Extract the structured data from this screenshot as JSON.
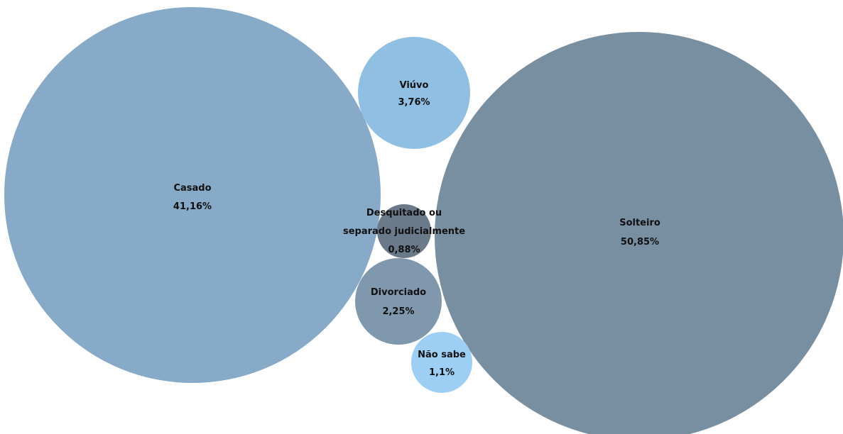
{
  "chart_data": {
    "type": "bubble",
    "series": [
      {
        "name": "Casado",
        "label": "Casado",
        "value_label": "41,16%",
        "value": 41.16,
        "color": "#86aac8"
      },
      {
        "name": "Viúvo",
        "label": "Viúvo",
        "value_label": "3,76%",
        "value": 3.76,
        "color": "#90bfe4"
      },
      {
        "name": "Desquitado ou separado judicialmente",
        "label_lines": [
          "Desquitado ou",
          "separado judicialmente"
        ],
        "value_label": "0,88%",
        "value": 0.88,
        "color": "#6b7a8b"
      },
      {
        "name": "Divorciado",
        "label": "Divorciado",
        "value_label": "2,25%",
        "value": 2.25,
        "color": "#7f98ae"
      },
      {
        "name": "Não sabe",
        "label": "Não sabe",
        "value_label": "1,1%",
        "value": 1.1,
        "color": "#9dcff5"
      },
      {
        "name": "Solteiro",
        "label": "Solteiro",
        "value_label": "50,85%",
        "value": 50.85,
        "color": "#788ea1"
      }
    ]
  }
}
